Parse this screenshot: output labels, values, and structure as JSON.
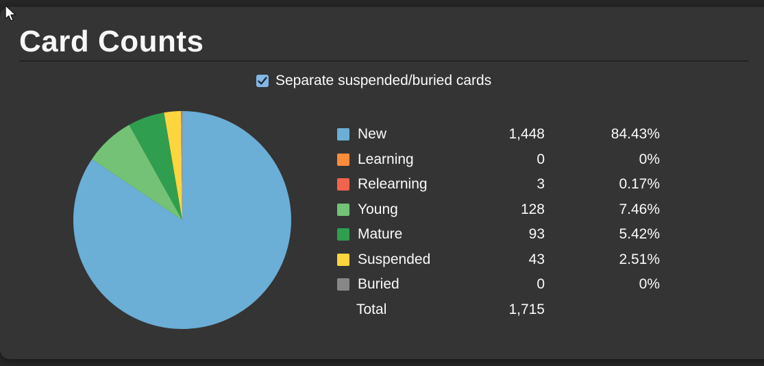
{
  "header": {
    "title": "Card Counts"
  },
  "controls": {
    "separate_checkbox": {
      "label": "Separate suspended/buried cards",
      "checked": true
    }
  },
  "chart_data": {
    "type": "pie",
    "title": "Card Counts",
    "categories": [
      "New",
      "Learning",
      "Relearning",
      "Young",
      "Mature",
      "Suspended",
      "Buried"
    ],
    "values": [
      1448,
      0,
      3,
      128,
      93,
      43,
      0
    ],
    "display_counts": [
      "1,448",
      "0",
      "3",
      "128",
      "93",
      "43",
      "0"
    ],
    "percents": [
      "84.43%",
      "0%",
      "0.17%",
      "7.46%",
      "5.42%",
      "2.51%",
      "0%"
    ],
    "colors": [
      "#6BAED6",
      "#FC8C3B",
      "#F2634C",
      "#74C276",
      "#2F9E4F",
      "#FCD53F",
      "#878787"
    ],
    "total": {
      "label": "Total",
      "display": "1,715",
      "value": 1715
    },
    "legend_position": "right",
    "sort": "value-descending",
    "start_angle_deg": 0,
    "direction": "clockwise"
  },
  "theme": {
    "panel_bg": "#343434",
    "page_bg": "#262626",
    "text_color": "#fafafa",
    "divider_color": "#242424",
    "checkbox_fill": "#83b7e5",
    "checkbox_check": "#1d2b38"
  }
}
